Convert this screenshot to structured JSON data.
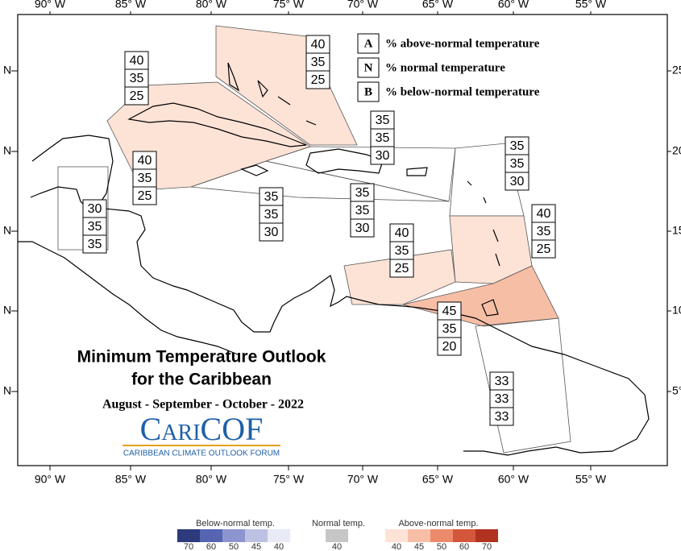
{
  "title": {
    "line1": "Minimum Temperature Outlook",
    "line2": "for the Caribbean"
  },
  "period": "August - September - October - 2022",
  "logo": {
    "name": "CariCOF",
    "subtitle": "CARIBBEAN CLIMATE OUTLOOK FORUM"
  },
  "key": [
    {
      "letter": "A",
      "text": "% above-normal temperature"
    },
    {
      "letter": "N",
      "text": "% normal temperature"
    },
    {
      "letter": "B",
      "text": "% below-normal temperature"
    }
  ],
  "longitude_labels": [
    "90° W",
    "85° W",
    "80° W",
    "75° W",
    "70° W",
    "65° W",
    "60° W",
    "55° W"
  ],
  "latitude_labels_left": [
    "N",
    "N",
    "N",
    "N",
    "N"
  ],
  "latitude_labels_right": [
    "25",
    "20",
    "15",
    "10",
    "5°"
  ],
  "regions": [
    {
      "above": 40,
      "normal": 35,
      "below": 25
    },
    {
      "above": 40,
      "normal": 35,
      "below": 25
    },
    {
      "above": 35,
      "normal": 35,
      "below": 30
    },
    {
      "above": 35,
      "normal": 35,
      "below": 30
    },
    {
      "above": 40,
      "normal": 35,
      "below": 25
    },
    {
      "above": 30,
      "normal": 35,
      "below": 35
    },
    {
      "above": 35,
      "normal": 35,
      "below": 30
    },
    {
      "above": 35,
      "normal": 35,
      "below": 30
    },
    {
      "above": 40,
      "normal": 35,
      "below": 25
    },
    {
      "above": 40,
      "normal": 35,
      "below": 25
    },
    {
      "above": 45,
      "normal": 35,
      "below": 20
    },
    {
      "above": 33,
      "normal": 33,
      "below": 33
    }
  ],
  "legend": {
    "below": {
      "title": "Below-normal temp.",
      "ticks": [
        70,
        60,
        50,
        45,
        40
      ],
      "colors": [
        "#2d3b7c",
        "#5565b2",
        "#8d95cf",
        "#bcc1e3",
        "#e8eaf6"
      ]
    },
    "normal": {
      "title": "Normal temp.",
      "ticks": [
        40
      ],
      "colors": [
        "#c6c6c6"
      ]
    },
    "above": {
      "title": "Above-normal temp.",
      "ticks": [
        40,
        45,
        50,
        60,
        70
      ],
      "colors": [
        "#fde3d6",
        "#f7bea6",
        "#ec8a6c",
        "#d4563b",
        "#b0321f"
      ]
    }
  }
}
